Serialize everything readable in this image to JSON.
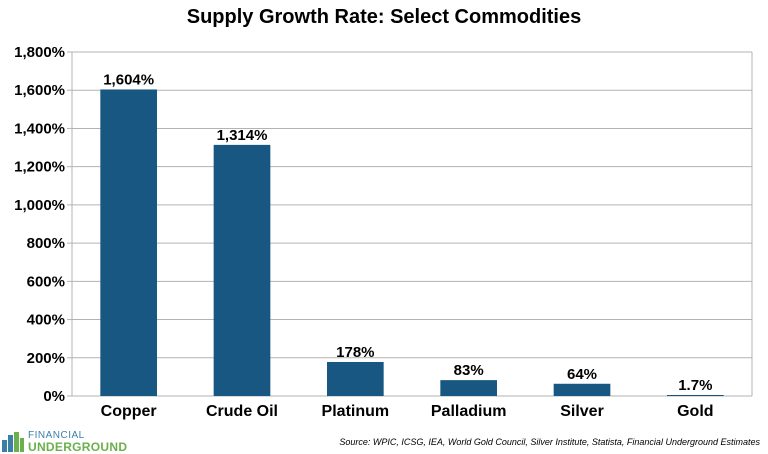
{
  "chart_data": {
    "type": "bar",
    "title": "Supply Growth Rate: Select Commodities",
    "categories": [
      "Copper",
      "Crude Oil",
      "Platinum",
      "Palladium",
      "Silver",
      "Gold"
    ],
    "values": [
      1604,
      1314,
      178,
      83,
      64,
      1.7
    ],
    "value_labels": [
      "1,604%",
      "1,314%",
      "178%",
      "83%",
      "64%",
      "1.7%"
    ],
    "ylim": [
      0,
      1800
    ],
    "yticks": [
      0,
      200,
      400,
      600,
      800,
      1000,
      1200,
      1400,
      1600,
      1800
    ],
    "ytick_labels": [
      "0%",
      "200%",
      "400%",
      "600%",
      "800%",
      "1,000%",
      "1,200%",
      "1,400%",
      "1,600%",
      "1,800%"
    ],
    "grid": true,
    "bar_color": "#175782"
  },
  "footer": {
    "source": "Source: WPIC, ICSG, IEA, World Gold Council, Silver Institute, Statista, Financial Underground Estimates",
    "logo_line1": "FINANCIAL",
    "logo_line2": "UNDERGROUND"
  },
  "colors": {
    "logo_blue": "#3a7fa8",
    "logo_green": "#6ab04c"
  }
}
